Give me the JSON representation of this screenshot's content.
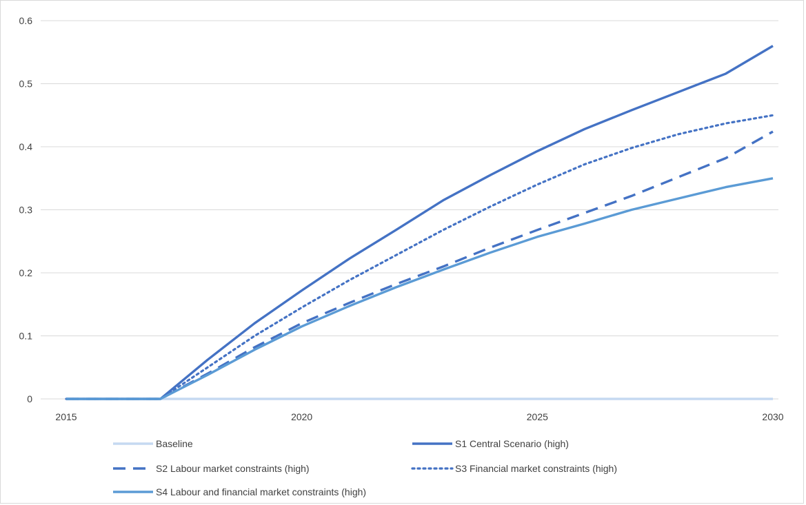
{
  "chart_data": {
    "type": "line",
    "title": "",
    "xlabel": "",
    "ylabel": "",
    "xlim": [
      2015,
      2030
    ],
    "ylim": [
      0,
      0.6
    ],
    "x_ticks": [
      2015,
      2020,
      2025,
      2030
    ],
    "y_ticks": [
      0,
      0.1,
      0.2,
      0.3,
      0.4,
      0.5,
      0.6
    ],
    "grid": "horizontal",
    "legend_position": "bottom",
    "x": [
      2015,
      2016,
      2017,
      2018,
      2019,
      2020,
      2021,
      2022,
      2023,
      2024,
      2025,
      2026,
      2027,
      2028,
      2029,
      2030
    ],
    "series": [
      {
        "name": "Baseline",
        "color": "#c5d9f1",
        "style": "solid",
        "values": [
          0,
          0,
          0,
          0,
          0,
          0,
          0,
          0,
          0,
          0,
          0,
          0,
          0,
          0,
          0,
          0
        ]
      },
      {
        "name": "S1 Central Scenario (high)",
        "color": "#4472c4",
        "style": "solid",
        "values": [
          0,
          0,
          0,
          0.062,
          0.12,
          0.172,
          0.222,
          0.268,
          0.315,
          0.355,
          0.393,
          0.428,
          0.458,
          0.487,
          0.516,
          0.56
        ]
      },
      {
        "name": "S2 Labour market constraints (high)",
        "color": "#4472c4",
        "style": "dashed",
        "values": [
          0,
          0,
          0,
          0.04,
          0.082,
          0.12,
          0.152,
          0.182,
          0.21,
          0.24,
          0.268,
          0.295,
          0.322,
          0.352,
          0.382,
          0.424
        ]
      },
      {
        "name": "S3 Financial market constraints (high)",
        "color": "#4472c4",
        "style": "dotted",
        "values": [
          0,
          0,
          0,
          0.05,
          0.1,
          0.145,
          0.188,
          0.228,
          0.268,
          0.305,
          0.34,
          0.372,
          0.398,
          0.42,
          0.437,
          0.45
        ]
      },
      {
        "name": "S4 Labour and financial market constraints (high)",
        "color": "#5b9bd5",
        "style": "solid",
        "values": [
          0,
          0,
          0,
          0.038,
          0.078,
          0.115,
          0.147,
          0.177,
          0.205,
          0.232,
          0.257,
          0.278,
          0.3,
          0.318,
          0.336,
          0.35
        ]
      }
    ]
  }
}
